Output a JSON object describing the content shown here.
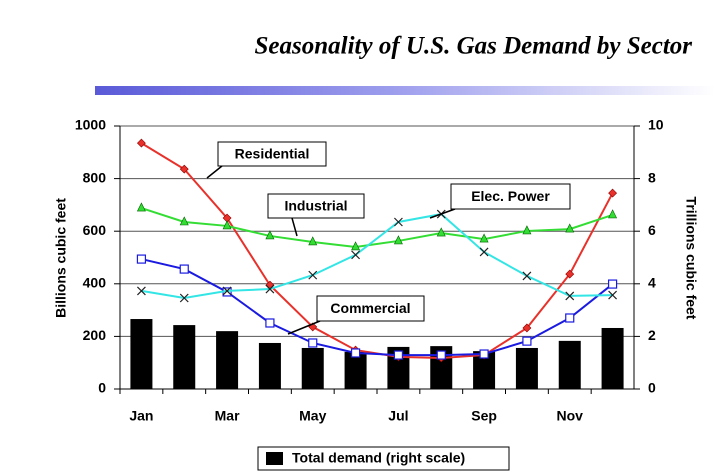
{
  "chart_data": {
    "type": "combo",
    "title": "Seasonality of U.S. Gas Demand by Sector",
    "y_label": "Billions cubic feet",
    "y2_label": "Trillions cubic feet",
    "categories": [
      "Jan",
      null,
      "Mar",
      null,
      "May",
      null,
      "Jul",
      null,
      "Sep",
      null,
      "Nov",
      null
    ],
    "ylim": [
      0,
      1000
    ],
    "yticks": [
      0,
      200,
      400,
      600,
      800,
      1000
    ],
    "y2lim": [
      0,
      10
    ],
    "y2ticks": [
      0,
      2,
      4,
      6,
      8,
      10
    ],
    "grid": true,
    "legend": "bottom",
    "annotations": [
      "Residential",
      "Industrial",
      "Elec. Power",
      "Commercial"
    ],
    "series": [
      {
        "name": "Residential",
        "type": "line",
        "marker": "diamond",
        "color": "#e8312a",
        "values": [
          935,
          836,
          650,
          395,
          236,
          148,
          122,
          118,
          129,
          232,
          437,
          745
        ]
      },
      {
        "name": "Commercial",
        "type": "line",
        "marker": "square",
        "color": "#1a1ae0",
        "values": [
          494,
          456,
          369,
          251,
          175,
          137,
          129,
          129,
          133,
          182,
          270,
          399
        ]
      },
      {
        "name": "Industrial",
        "type": "line",
        "marker": "triangle",
        "color": "#33dd33",
        "values": [
          688,
          635,
          620,
          582,
          559,
          540,
          563,
          593,
          570,
          601,
          608,
          662
        ]
      },
      {
        "name": "Elec. Power",
        "type": "line",
        "marker": "x",
        "color": "#33e5e5",
        "values": [
          373,
          346,
          373,
          380,
          433,
          510,
          635,
          665,
          521,
          430,
          354,
          357
        ]
      },
      {
        "name": "Total demand (right scale)",
        "type": "bar",
        "axis": "y2",
        "color": "#000000",
        "values": [
          2.66,
          2.43,
          2.2,
          1.75,
          1.56,
          1.41,
          1.6,
          1.63,
          1.44,
          1.56,
          1.83,
          2.32
        ]
      }
    ]
  }
}
